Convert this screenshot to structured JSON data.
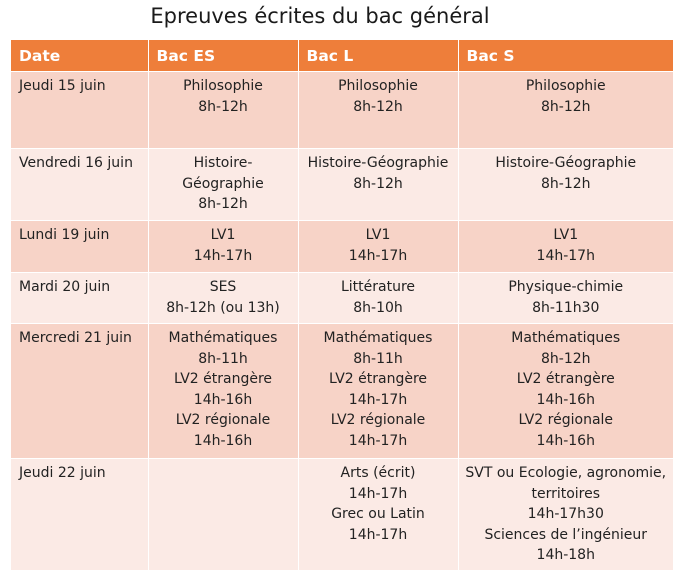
{
  "title": "Epreuves écrites du bac général",
  "headers": [
    "Date",
    "Bac ES",
    "Bac L",
    "Bac S"
  ],
  "rows": [
    {
      "date": "Jeudi 15 juin",
      "es": [
        "Philosophie",
        "8h-12h"
      ],
      "l": [
        "Philosophie",
        "8h-12h"
      ],
      "s": [
        "Philosophie",
        "8h-12h"
      ]
    },
    {
      "date": "Vendredi 16 juin",
      "es": [
        "Histoire-",
        "Géographie",
        "8h-12h"
      ],
      "l": [
        "Histoire-Géographie",
        "8h-12h"
      ],
      "s": [
        "Histoire-Géographie",
        "8h-12h"
      ]
    },
    {
      "date": "Lundi 19 juin",
      "es": [
        "LV1",
        "14h-17h"
      ],
      "l": [
        "LV1",
        "14h-17h"
      ],
      "s": [
        "LV1",
        "14h-17h"
      ]
    },
    {
      "date": "Mardi 20 juin",
      "es": [
        "SES",
        "8h-12h (ou 13h)"
      ],
      "l": [
        "Littérature",
        "8h-10h"
      ],
      "s": [
        "Physique-chimie",
        "8h-11h30"
      ]
    },
    {
      "date": "Mercredi 21 juin",
      "es": [
        "Mathématiques",
        "8h-11h",
        "LV2 étrangère",
        "14h-16h",
        "LV2 régionale",
        "14h-16h"
      ],
      "l": [
        "Mathématiques",
        "8h-11h",
        "LV2 étrangère",
        "14h-17h",
        "LV2 régionale",
        "14h-17h"
      ],
      "s": [
        "Mathématiques",
        "8h-12h",
        "LV2 étrangère",
        "14h-16h",
        "LV2 régionale",
        "14h-16h"
      ]
    },
    {
      "date": "Jeudi 22 juin",
      "es": [],
      "l": [
        "Arts (écrit)",
        "14h-17h",
        "Grec ou Latin",
        "14h-17h"
      ],
      "s": [
        "SVT ou Ecologie, agronomie, territoires",
        "14h-17h30",
        "Sciences de l’ingénieur",
        "14h-18h"
      ]
    }
  ],
  "colors": {
    "header": "#ee7e3a",
    "row_dark": "#f7d3c7",
    "row_light": "#fbeae5"
  }
}
